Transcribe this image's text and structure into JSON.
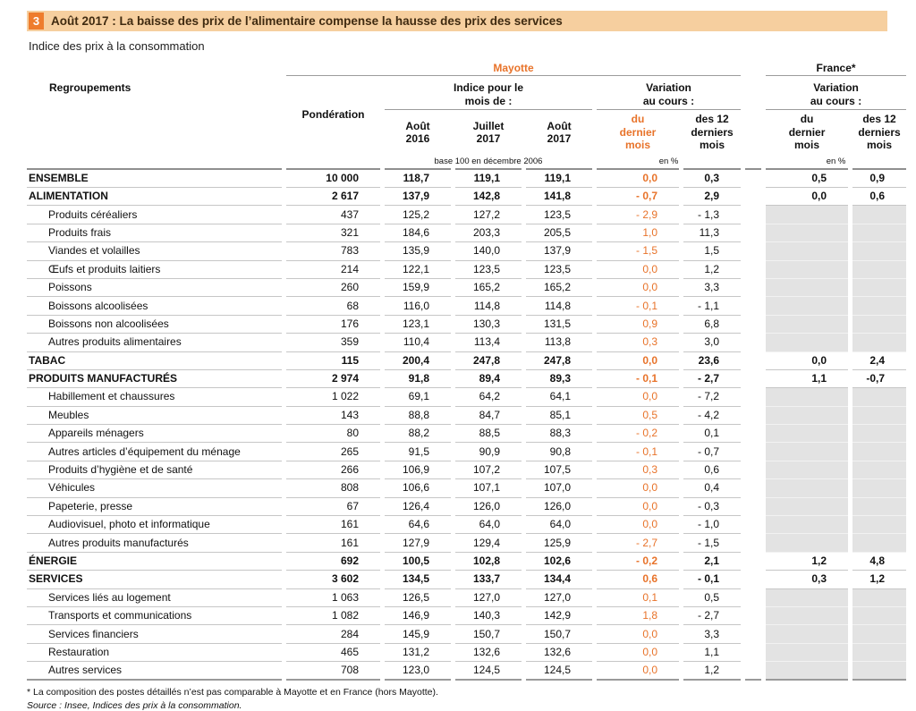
{
  "page": {
    "badge": "3",
    "title": "Août 2017 : La baisse des prix de l’alimentaire compense la hausse des prix des services",
    "subtitle": "Indice des prix à la consommation",
    "footnote": "* La composition des postes détaillés n’est pas comparable à Mayotte et en France (hors Mayotte).",
    "source": "Source : Insee, Indices des prix à la consommation."
  },
  "colors": {
    "accent_orange": "#e8732a",
    "banner_bg": "#f6cf9f",
    "badge_bg": "#ee7c2d",
    "na_cell_bg": "#e3e3e3"
  },
  "header": {
    "regroupements": "Regroupements",
    "ponderation": "Pondération",
    "mayotte": "Mayotte",
    "france": "France*",
    "indice_group": "Indice pour le\nmois de :",
    "variation_group": "Variation\nau cours :",
    "month_aout_2016": "Août\n2016",
    "month_juillet_2017": "Juillet\n2017",
    "month_aout_2017": "Août\n2017",
    "var_dernier_mois": "du\ndernier\nmois",
    "var_12_mois": "des 12\nderniers\nmois",
    "base_note": "base 100 en décembre 2006",
    "en_pct": "en %"
  },
  "table": {
    "rows": [
      {
        "label": "ENSEMBLE",
        "level": "section",
        "pond": "10 000",
        "aout16": "118,7",
        "juil17": "119,1",
        "aout17": "119,1",
        "var_mois": "0,0",
        "var_12": "0,3",
        "fr_mois": "0,5",
        "fr_12": "0,9"
      },
      {
        "label": "ALIMENTATION",
        "level": "section",
        "pond": "2 617",
        "aout16": "137,9",
        "juil17": "142,8",
        "aout17": "141,8",
        "var_mois": "- 0,7",
        "var_12": "2,9",
        "fr_mois": "0,0",
        "fr_12": "0,6"
      },
      {
        "label": "Produits céréaliers",
        "level": "detail",
        "pond": "437",
        "aout16": "125,2",
        "juil17": "127,2",
        "aout17": "123,5",
        "var_mois": "- 2,9",
        "var_12": "- 1,3",
        "fr_mois": null,
        "fr_12": null
      },
      {
        "label": "Produits frais",
        "level": "detail",
        "pond": "321",
        "aout16": "184,6",
        "juil17": "203,3",
        "aout17": "205,5",
        "var_mois": "1,0",
        "var_12": "11,3",
        "fr_mois": null,
        "fr_12": null
      },
      {
        "label": "Viandes et volailles",
        "level": "detail",
        "pond": "783",
        "aout16": "135,9",
        "juil17": "140,0",
        "aout17": "137,9",
        "var_mois": "- 1,5",
        "var_12": "1,5",
        "fr_mois": null,
        "fr_12": null
      },
      {
        "label": "Œufs et produits laitiers",
        "level": "detail",
        "pond": "214",
        "aout16": "122,1",
        "juil17": "123,5",
        "aout17": "123,5",
        "var_mois": "0,0",
        "var_12": "1,2",
        "fr_mois": null,
        "fr_12": null
      },
      {
        "label": "Poissons",
        "level": "detail",
        "pond": "260",
        "aout16": "159,9",
        "juil17": "165,2",
        "aout17": "165,2",
        "var_mois": "0,0",
        "var_12": "3,3",
        "fr_mois": null,
        "fr_12": null
      },
      {
        "label": "Boissons alcoolisées",
        "level": "detail",
        "pond": "68",
        "aout16": "116,0",
        "juil17": "114,8",
        "aout17": "114,8",
        "var_mois": "- 0,1",
        "var_12": "- 1,1",
        "fr_mois": null,
        "fr_12": null
      },
      {
        "label": "Boissons non alcoolisées",
        "level": "detail",
        "pond": "176",
        "aout16": "123,1",
        "juil17": "130,3",
        "aout17": "131,5",
        "var_mois": "0,9",
        "var_12": "6,8",
        "fr_mois": null,
        "fr_12": null
      },
      {
        "label": "Autres produits alimentaires",
        "level": "detail",
        "pond": "359",
        "aout16": "110,4",
        "juil17": "113,4",
        "aout17": "113,8",
        "var_mois": "0,3",
        "var_12": "3,0",
        "fr_mois": null,
        "fr_12": null
      },
      {
        "label": "TABAC",
        "level": "section",
        "pond": "115",
        "aout16": "200,4",
        "juil17": "247,8",
        "aout17": "247,8",
        "var_mois": "0,0",
        "var_12": "23,6",
        "fr_mois": "0,0",
        "fr_12": "2,4"
      },
      {
        "label": "PRODUITS MANUFACTURÉS",
        "level": "section",
        "pond": "2 974",
        "aout16": "91,8",
        "juil17": "89,4",
        "aout17": "89,3",
        "var_mois": "- 0,1",
        "var_12": "- 2,7",
        "fr_mois": "1,1",
        "fr_12": "-0,7"
      },
      {
        "label": "Habillement et chaussures",
        "level": "detail",
        "pond": "1 022",
        "aout16": "69,1",
        "juil17": "64,2",
        "aout17": "64,1",
        "var_mois": "0,0",
        "var_12": "- 7,2",
        "fr_mois": null,
        "fr_12": null
      },
      {
        "label": "Meubles",
        "level": "detail",
        "pond": "143",
        "aout16": "88,8",
        "juil17": "84,7",
        "aout17": "85,1",
        "var_mois": "0,5",
        "var_12": "- 4,2",
        "fr_mois": null,
        "fr_12": null
      },
      {
        "label": "Appareils ménagers",
        "level": "detail",
        "pond": "80",
        "aout16": "88,2",
        "juil17": "88,5",
        "aout17": "88,3",
        "var_mois": "- 0,2",
        "var_12": "0,1",
        "fr_mois": null,
        "fr_12": null
      },
      {
        "label": "Autres articles d’équipement du ménage",
        "level": "detail",
        "pond": "265",
        "aout16": "91,5",
        "juil17": "90,9",
        "aout17": "90,8",
        "var_mois": "- 0,1",
        "var_12": "- 0,7",
        "fr_mois": null,
        "fr_12": null
      },
      {
        "label": "Produits d’hygiène et de santé",
        "level": "detail",
        "pond": "266",
        "aout16": "106,9",
        "juil17": "107,2",
        "aout17": "107,5",
        "var_mois": "0,3",
        "var_12": "0,6",
        "fr_mois": null,
        "fr_12": null
      },
      {
        "label": "Véhicules",
        "level": "detail",
        "pond": "808",
        "aout16": "106,6",
        "juil17": "107,1",
        "aout17": "107,0",
        "var_mois": "0,0",
        "var_12": "0,4",
        "fr_mois": null,
        "fr_12": null
      },
      {
        "label": "Papeterie, presse",
        "level": "detail",
        "pond": "67",
        "aout16": "126,4",
        "juil17": "126,0",
        "aout17": "126,0",
        "var_mois": "0,0",
        "var_12": "- 0,3",
        "fr_mois": null,
        "fr_12": null
      },
      {
        "label": "Audiovisuel, photo et informatique",
        "level": "detail",
        "pond": "161",
        "aout16": "64,6",
        "juil17": "64,0",
        "aout17": "64,0",
        "var_mois": "0,0",
        "var_12": "- 1,0",
        "fr_mois": null,
        "fr_12": null
      },
      {
        "label": "Autres produits manufacturés",
        "level": "detail",
        "pond": "161",
        "aout16": "127,9",
        "juil17": "129,4",
        "aout17": "125,9",
        "var_mois": "- 2,7",
        "var_12": "- 1,5",
        "fr_mois": null,
        "fr_12": null
      },
      {
        "label": "ÉNERGIE",
        "level": "section",
        "pond": "692",
        "aout16": "100,5",
        "juil17": "102,8",
        "aout17": "102,6",
        "var_mois": "- 0,2",
        "var_12": "2,1",
        "fr_mois": "1,2",
        "fr_12": "4,8"
      },
      {
        "label": "SERVICES",
        "level": "section",
        "pond": "3 602",
        "aout16": "134,5",
        "juil17": "133,7",
        "aout17": "134,4",
        "var_mois": "0,6",
        "var_12": "- 0,1",
        "fr_mois": "0,3",
        "fr_12": "1,2"
      },
      {
        "label": "Services liés au logement",
        "level": "detail",
        "pond": "1 063",
        "aout16": "126,5",
        "juil17": "127,0",
        "aout17": "127,0",
        "var_mois": "0,1",
        "var_12": "0,5",
        "fr_mois": null,
        "fr_12": null
      },
      {
        "label": "Transports et communications",
        "level": "detail",
        "pond": "1 082",
        "aout16": "146,9",
        "juil17": "140,3",
        "aout17": "142,9",
        "var_mois": "1,8",
        "var_12": "- 2,7",
        "fr_mois": null,
        "fr_12": null
      },
      {
        "label": "Services financiers",
        "level": "detail",
        "pond": "284",
        "aout16": "145,9",
        "juil17": "150,7",
        "aout17": "150,7",
        "var_mois": "0,0",
        "var_12": "3,3",
        "fr_mois": null,
        "fr_12": null
      },
      {
        "label": "Restauration",
        "level": "detail",
        "pond": "465",
        "aout16": "131,2",
        "juil17": "132,6",
        "aout17": "132,6",
        "var_mois": "0,0",
        "var_12": "1,1",
        "fr_mois": null,
        "fr_12": null
      },
      {
        "label": "Autres services",
        "level": "detail",
        "pond": "708",
        "aout16": "123,0",
        "juil17": "124,5",
        "aout17": "124,5",
        "var_mois": "0,0",
        "var_12": "1,2",
        "fr_mois": null,
        "fr_12": null
      }
    ]
  }
}
